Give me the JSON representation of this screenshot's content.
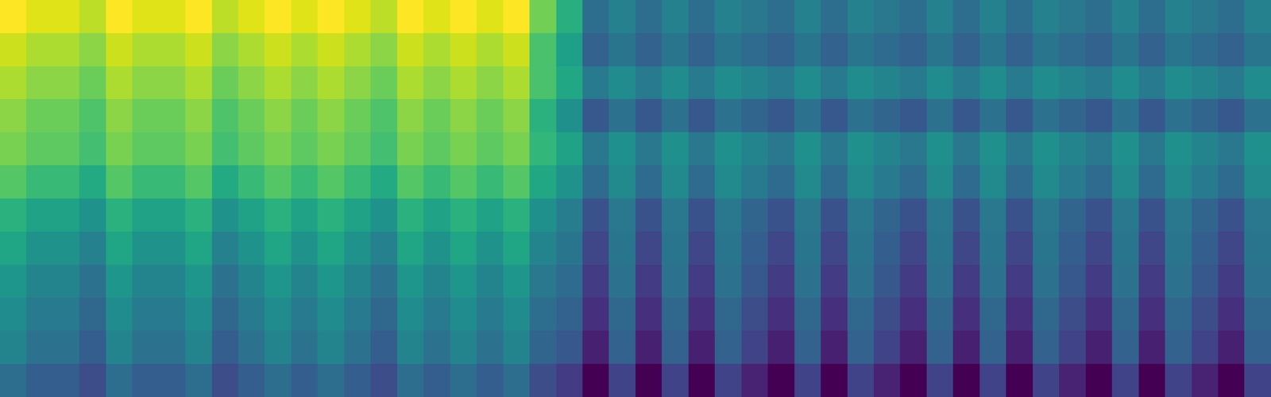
{
  "chart_data": {
    "type": "heatmap",
    "color": "viridis",
    "tick_labels": false,
    "cells": [
      [
        0.94,
        0.9,
        0.9,
        0.86,
        0.94,
        0.9,
        0.9,
        0.94,
        0.86,
        0.9,
        0.94,
        0.9,
        0.94,
        0.9,
        0.86,
        0.94,
        0.9,
        0.94,
        0.9,
        0.94,
        0.77,
        0.64,
        0.43,
        0.49,
        0.43,
        0.49,
        0.43,
        0.49,
        0.46,
        0.43,
        0.49,
        0.43,
        0.49,
        0.46,
        0.43,
        0.49,
        0.43,
        0.49,
        0.43,
        0.49,
        0.46,
        0.43,
        0.49,
        0.43,
        0.49,
        0.46,
        0.43,
        0.49
      ],
      [
        0.88,
        0.84,
        0.84,
        0.8,
        0.88,
        0.84,
        0.84,
        0.88,
        0.8,
        0.84,
        0.88,
        0.84,
        0.88,
        0.84,
        0.8,
        0.88,
        0.84,
        0.88,
        0.84,
        0.88,
        0.71,
        0.59,
        0.39,
        0.45,
        0.39,
        0.45,
        0.39,
        0.45,
        0.42,
        0.39,
        0.45,
        0.39,
        0.45,
        0.42,
        0.39,
        0.45,
        0.39,
        0.45,
        0.39,
        0.45,
        0.42,
        0.39,
        0.45,
        0.39,
        0.45,
        0.42,
        0.39,
        0.45
      ],
      [
        0.84,
        0.8,
        0.8,
        0.76,
        0.84,
        0.8,
        0.8,
        0.84,
        0.76,
        0.8,
        0.84,
        0.8,
        0.84,
        0.8,
        0.76,
        0.84,
        0.8,
        0.84,
        0.8,
        0.84,
        0.71,
        0.62,
        0.47,
        0.53,
        0.47,
        0.53,
        0.47,
        0.53,
        0.5,
        0.47,
        0.53,
        0.47,
        0.53,
        0.5,
        0.47,
        0.53,
        0.47,
        0.53,
        0.47,
        0.53,
        0.5,
        0.47,
        0.53,
        0.47,
        0.53,
        0.5,
        0.47,
        0.53
      ],
      [
        0.8,
        0.76,
        0.76,
        0.72,
        0.8,
        0.76,
        0.76,
        0.8,
        0.72,
        0.76,
        0.8,
        0.76,
        0.8,
        0.76,
        0.72,
        0.8,
        0.76,
        0.8,
        0.76,
        0.8,
        0.65,
        0.54,
        0.36,
        0.44,
        0.36,
        0.44,
        0.36,
        0.44,
        0.4,
        0.36,
        0.44,
        0.36,
        0.44,
        0.4,
        0.36,
        0.44,
        0.36,
        0.44,
        0.36,
        0.44,
        0.4,
        0.36,
        0.44,
        0.36,
        0.44,
        0.4,
        0.36,
        0.44
      ],
      [
        0.78,
        0.74,
        0.74,
        0.7,
        0.78,
        0.74,
        0.74,
        0.78,
        0.7,
        0.74,
        0.78,
        0.74,
        0.78,
        0.74,
        0.7,
        0.78,
        0.74,
        0.78,
        0.74,
        0.78,
        0.67,
        0.6,
        0.46,
        0.54,
        0.46,
        0.54,
        0.46,
        0.54,
        0.5,
        0.46,
        0.54,
        0.46,
        0.54,
        0.5,
        0.46,
        0.54,
        0.46,
        0.54,
        0.46,
        0.54,
        0.5,
        0.46,
        0.54,
        0.46,
        0.54,
        0.5,
        0.46,
        0.54
      ],
      [
        0.73,
        0.68,
        0.68,
        0.63,
        0.73,
        0.68,
        0.68,
        0.73,
        0.63,
        0.68,
        0.73,
        0.68,
        0.73,
        0.68,
        0.63,
        0.73,
        0.68,
        0.73,
        0.68,
        0.73,
        0.62,
        0.55,
        0.42,
        0.52,
        0.42,
        0.52,
        0.42,
        0.52,
        0.47,
        0.42,
        0.52,
        0.42,
        0.52,
        0.47,
        0.42,
        0.52,
        0.42,
        0.52,
        0.42,
        0.52,
        0.47,
        0.42,
        0.52,
        0.42,
        0.52,
        0.47,
        0.42,
        0.52
      ],
      [
        0.65,
        0.6,
        0.6,
        0.55,
        0.65,
        0.6,
        0.6,
        0.65,
        0.55,
        0.6,
        0.65,
        0.6,
        0.65,
        0.6,
        0.55,
        0.65,
        0.6,
        0.65,
        0.6,
        0.65,
        0.54,
        0.48,
        0.34,
        0.46,
        0.34,
        0.46,
        0.34,
        0.46,
        0.4,
        0.34,
        0.46,
        0.34,
        0.46,
        0.4,
        0.34,
        0.46,
        0.34,
        0.46,
        0.34,
        0.46,
        0.4,
        0.34,
        0.46,
        0.34,
        0.46,
        0.4,
        0.34,
        0.46
      ],
      [
        0.61,
        0.55,
        0.55,
        0.49,
        0.61,
        0.55,
        0.55,
        0.61,
        0.49,
        0.55,
        0.61,
        0.55,
        0.61,
        0.55,
        0.49,
        0.61,
        0.55,
        0.61,
        0.55,
        0.61,
        0.5,
        0.45,
        0.31,
        0.45,
        0.31,
        0.45,
        0.31,
        0.45,
        0.38,
        0.31,
        0.45,
        0.31,
        0.45,
        0.38,
        0.31,
        0.45,
        0.31,
        0.45,
        0.31,
        0.45,
        0.38,
        0.31,
        0.45,
        0.31,
        0.45,
        0.38,
        0.31,
        0.45
      ],
      [
        0.56,
        0.5,
        0.5,
        0.44,
        0.56,
        0.5,
        0.5,
        0.56,
        0.44,
        0.5,
        0.56,
        0.5,
        0.56,
        0.5,
        0.44,
        0.56,
        0.5,
        0.56,
        0.5,
        0.56,
        0.46,
        0.42,
        0.28,
        0.44,
        0.28,
        0.44,
        0.28,
        0.44,
        0.36,
        0.28,
        0.44,
        0.28,
        0.44,
        0.36,
        0.28,
        0.44,
        0.28,
        0.44,
        0.28,
        0.44,
        0.36,
        0.28,
        0.44,
        0.28,
        0.44,
        0.36,
        0.28,
        0.44
      ],
      [
        0.53,
        0.47,
        0.47,
        0.41,
        0.53,
        0.47,
        0.47,
        0.53,
        0.41,
        0.47,
        0.53,
        0.47,
        0.53,
        0.47,
        0.41,
        0.53,
        0.47,
        0.53,
        0.47,
        0.53,
        0.43,
        0.39,
        0.25,
        0.41,
        0.25,
        0.41,
        0.25,
        0.41,
        0.33,
        0.25,
        0.41,
        0.25,
        0.41,
        0.33,
        0.25,
        0.41,
        0.25,
        0.41,
        0.25,
        0.41,
        0.33,
        0.25,
        0.41,
        0.25,
        0.41,
        0.33,
        0.25,
        0.41
      ],
      [
        0.5,
        0.44,
        0.44,
        0.38,
        0.5,
        0.44,
        0.44,
        0.5,
        0.38,
        0.44,
        0.5,
        0.44,
        0.5,
        0.44,
        0.38,
        0.5,
        0.44,
        0.5,
        0.44,
        0.5,
        0.4,
        0.36,
        0.21,
        0.39,
        0.21,
        0.39,
        0.21,
        0.39,
        0.3,
        0.21,
        0.39,
        0.21,
        0.39,
        0.3,
        0.21,
        0.39,
        0.21,
        0.39,
        0.21,
        0.39,
        0.3,
        0.21,
        0.39,
        0.21,
        0.39,
        0.3,
        0.21,
        0.39
      ],
      [
        0.43,
        0.38,
        0.38,
        0.33,
        0.43,
        0.38,
        0.38,
        0.43,
        0.33,
        0.38,
        0.43,
        0.38,
        0.43,
        0.38,
        0.33,
        0.43,
        0.38,
        0.43,
        0.38,
        0.43,
        0.33,
        0.28,
        0.14,
        0.3,
        0.14,
        0.3,
        0.14,
        0.3,
        0.22,
        0.14,
        0.3,
        0.14,
        0.3,
        0.22,
        0.14,
        0.3,
        0.14,
        0.3,
        0.14,
        0.3,
        0.22,
        0.14,
        0.3,
        0.14,
        0.3,
        0.22,
        0.14,
        0.3
      ]
    ]
  }
}
